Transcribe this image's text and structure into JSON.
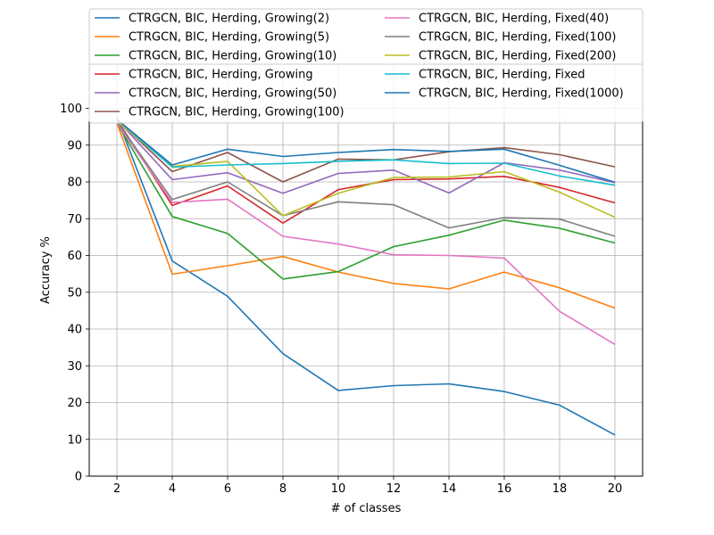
{
  "chart_data": {
    "type": "line",
    "xlabel": "# of classes",
    "ylabel": "Accuracy %",
    "x": [
      2,
      4,
      6,
      8,
      10,
      12,
      14,
      16,
      18,
      20
    ],
    "xlim": [
      1,
      21
    ],
    "ylim": [
      0,
      112
    ],
    "yticks": [
      0,
      10,
      20,
      30,
      40,
      50,
      60,
      70,
      80,
      90,
      100
    ],
    "grid": true,
    "legend_position": "top",
    "series": [
      {
        "name": "CTRGCN, BIC, Herding, Growing(2)",
        "color": "#1f77b4",
        "values": [
          97.5,
          58.5,
          48.9,
          33.3,
          23.3,
          24.6,
          25.1,
          23.0,
          19.3,
          11.2
        ]
      },
      {
        "name": "CTRGCN, BIC, Herding, Growing(5)",
        "color": "#ff7f0e",
        "values": [
          96.0,
          54.9,
          57.2,
          59.7,
          55.5,
          52.4,
          50.9,
          55.5,
          51.2,
          45.7
        ]
      },
      {
        "name": "CTRGCN, BIC, Herding, Growing(10)",
        "color": "#2ca02c",
        "values": [
          96.0,
          70.6,
          66.0,
          53.6,
          55.6,
          62.4,
          65.5,
          69.6,
          67.4,
          63.4
        ]
      },
      {
        "name": "CTRGCN, BIC, Herding, Growing",
        "color": "#d62728",
        "values": [
          97.0,
          73.6,
          78.9,
          68.8,
          77.9,
          80.6,
          80.8,
          81.5,
          78.5,
          74.3
        ]
      },
      {
        "name": "CTRGCN, BIC, Herding, Growing(50)",
        "color": "#9467bd",
        "values": [
          97.0,
          80.6,
          82.5,
          76.9,
          82.3,
          83.2,
          77.0,
          85.2,
          83.2,
          79.8
        ]
      },
      {
        "name": "CTRGCN, BIC, Herding, Growing(100)",
        "color": "#8c564b",
        "values": [
          97.0,
          82.8,
          88.0,
          80.0,
          86.2,
          86.0,
          88.2,
          89.3,
          87.4,
          84.1
        ]
      },
      {
        "name": "CTRGCN, BIC, Herding, Fixed(40)",
        "color": "#e377c2",
        "values": [
          96.0,
          74.4,
          75.3,
          65.2,
          63.1,
          60.2,
          60.0,
          59.3,
          44.8,
          35.8
        ]
      },
      {
        "name": "CTRGCN, BIC, Herding, Fixed(100)",
        "color": "#7f7f7f",
        "values": [
          96.5,
          75.2,
          80.0,
          70.8,
          74.6,
          73.8,
          67.5,
          70.3,
          69.9,
          65.2
        ]
      },
      {
        "name": "CTRGCN, BIC, Herding, Fixed(200)",
        "color": "#bcbd22",
        "values": [
          96.5,
          84.2,
          85.6,
          70.8,
          76.9,
          81.2,
          81.3,
          82.8,
          77.2,
          70.4
        ]
      },
      {
        "name": "CTRGCN, BIC, Herding, Fixed",
        "color": "#17becf",
        "values": [
          97.0,
          84.0,
          84.6,
          85.0,
          85.6,
          86.0,
          85.0,
          85.1,
          81.6,
          79.1
        ]
      },
      {
        "name": "CTRGCN, BIC, Herding, Fixed(1000)",
        "color": "#1f77b4",
        "values": [
          97.0,
          84.6,
          88.9,
          86.9,
          88.0,
          88.8,
          88.3,
          88.9,
          84.5,
          79.9
        ]
      }
    ]
  }
}
